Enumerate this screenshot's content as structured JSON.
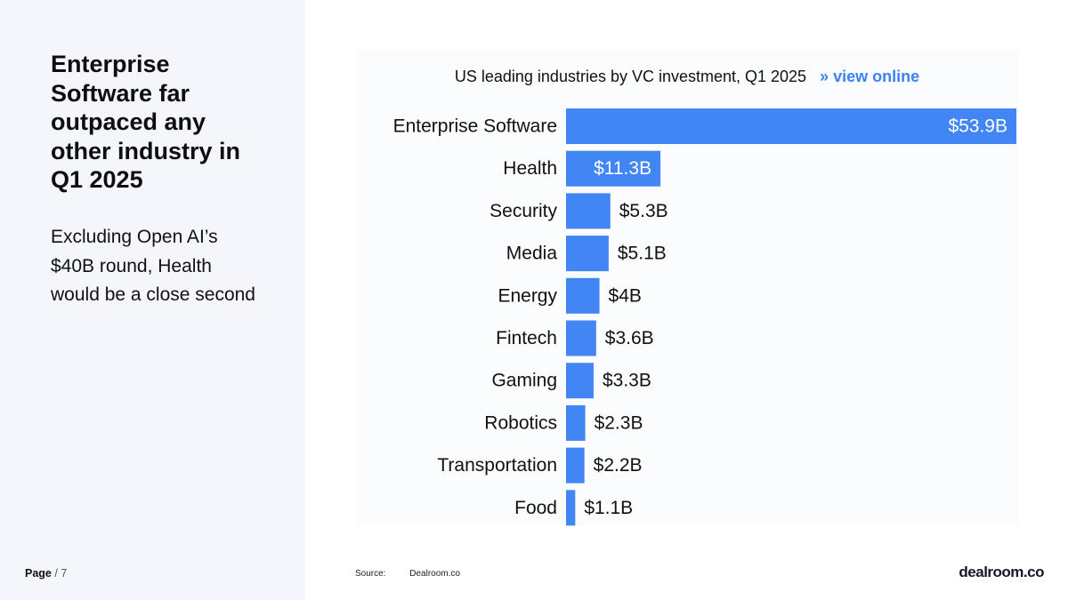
{
  "slide": {
    "headline": "Enterprise Software far outpaced any other industry in Q1 2025",
    "subtext": "Excluding Open AI’s $40B round, Health would be a close second",
    "page_label": "Page",
    "page_separator": "/",
    "page_number": "7"
  },
  "chart_header": {
    "title": "US leading industries by VC investment, Q1 2025",
    "link_label": "» view online"
  },
  "chart_data": {
    "type": "bar",
    "orientation": "horizontal",
    "title": "US leading industries by VC investment, Q1 2025",
    "categories": [
      "Enterprise Software",
      "Health",
      "Security",
      "Media",
      "Energy",
      "Fintech",
      "Gaming",
      "Robotics",
      "Transportation",
      "Food"
    ],
    "values": [
      53.9,
      11.3,
      5.3,
      5.1,
      4.0,
      3.6,
      3.3,
      2.3,
      2.2,
      1.1
    ],
    "value_labels": [
      "$53.9B",
      "$11.3B",
      "$5.3B",
      "$5.1B",
      "$4B",
      "$3.6B",
      "$3.3B",
      "$2.3B",
      "$2.2B",
      "$1.1B"
    ],
    "unit": "B USD",
    "xlim": [
      0,
      53.9
    ],
    "bar_color": "#4285f4",
    "grid": false,
    "legend": "none"
  },
  "footer": {
    "source_label": "Source:",
    "source_value": "Dealroom.co",
    "logo_text": "dealroom.co"
  },
  "colors": {
    "accent": "#3b82f6",
    "bar": "#4285f4",
    "panel_bg": "#f4f6fb"
  }
}
